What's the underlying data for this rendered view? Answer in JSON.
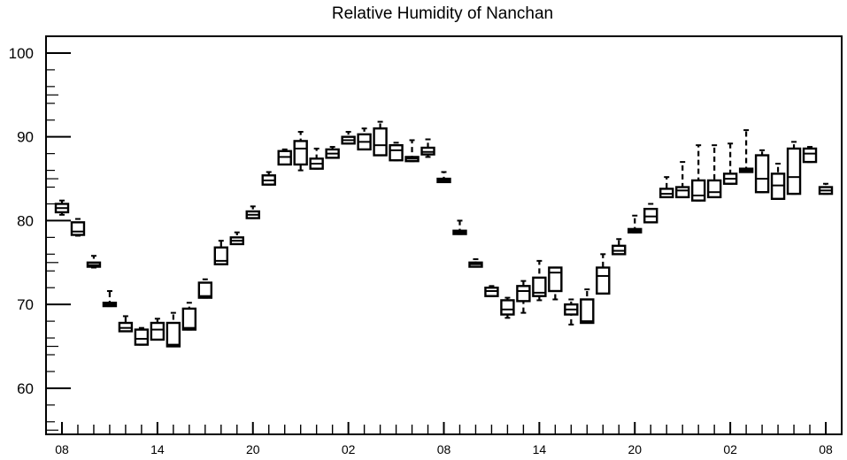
{
  "chart_data": {
    "type": "box",
    "title": "Relative Humidity of Nanchan",
    "xlabel": "",
    "ylabel": "",
    "ylim": [
      54.5,
      102
    ],
    "yticks": [
      60,
      70,
      80,
      90,
      100
    ],
    "xtick_labels": [
      "08",
      "14",
      "20",
      "02",
      "08",
      "14",
      "20",
      "02",
      "08"
    ],
    "xtick_positions": [
      0,
      6,
      12,
      18,
      24,
      30,
      36,
      42,
      48
    ],
    "grid": false,
    "boxes": [
      {
        "x": 0,
        "whisker_low": 80.7,
        "q1": 81.0,
        "median": 81.5,
        "q3": 82.0,
        "whisker_high": 82.4
      },
      {
        "x": 1,
        "whisker_low": 78.2,
        "q1": 78.3,
        "median": 78.7,
        "q3": 79.8,
        "whisker_high": 80.2
      },
      {
        "x": 2,
        "whisker_low": 74.4,
        "q1": 74.5,
        "median": 74.7,
        "q3": 75.0,
        "whisker_high": 75.8
      },
      {
        "x": 3,
        "whisker_low": 69.8,
        "q1": 69.8,
        "median": 70.0,
        "q3": 70.2,
        "whisker_high": 71.6
      },
      {
        "x": 4,
        "whisker_low": 66.8,
        "q1": 66.8,
        "median": 67.2,
        "q3": 67.8,
        "whisker_high": 68.6
      },
      {
        "x": 5,
        "whisker_low": 65.2,
        "q1": 65.2,
        "median": 65.9,
        "q3": 67.0,
        "whisker_high": 67.2
      },
      {
        "x": 6,
        "whisker_low": 65.8,
        "q1": 65.8,
        "median": 67.0,
        "q3": 67.8,
        "whisker_high": 68.3
      },
      {
        "x": 7,
        "whisker_low": 65.0,
        "q1": 65.0,
        "median": 65.2,
        "q3": 67.8,
        "whisker_high": 69.0
      },
      {
        "x": 8,
        "whisker_low": 67.0,
        "q1": 67.0,
        "median": 67.2,
        "q3": 69.5,
        "whisker_high": 70.2
      },
      {
        "x": 9,
        "whisker_low": 70.8,
        "q1": 70.8,
        "median": 71.0,
        "q3": 72.6,
        "whisker_high": 73.0
      },
      {
        "x": 10,
        "whisker_low": 74.8,
        "q1": 74.8,
        "median": 75.2,
        "q3": 76.8,
        "whisker_high": 77.6
      },
      {
        "x": 11,
        "whisker_low": 77.2,
        "q1": 77.2,
        "median": 77.6,
        "q3": 78.0,
        "whisker_high": 78.6
      },
      {
        "x": 12,
        "whisker_low": 80.3,
        "q1": 80.3,
        "median": 80.7,
        "q3": 81.1,
        "whisker_high": 81.7
      },
      {
        "x": 13,
        "whisker_low": 84.3,
        "q1": 84.3,
        "median": 84.8,
        "q3": 85.4,
        "whisker_high": 85.8
      },
      {
        "x": 14,
        "whisker_low": 86.7,
        "q1": 86.7,
        "median": 87.6,
        "q3": 88.3,
        "whisker_high": 88.5
      },
      {
        "x": 15,
        "whisker_low": 86.0,
        "q1": 86.7,
        "median": 88.6,
        "q3": 89.5,
        "whisker_high": 90.6
      },
      {
        "x": 16,
        "whisker_low": 86.2,
        "q1": 86.2,
        "median": 86.8,
        "q3": 87.4,
        "whisker_high": 88.6
      },
      {
        "x": 17,
        "whisker_low": 87.5,
        "q1": 87.5,
        "median": 88.0,
        "q3": 88.5,
        "whisker_high": 88.8
      },
      {
        "x": 18,
        "whisker_low": 89.2,
        "q1": 89.2,
        "median": 89.6,
        "q3": 90.0,
        "whisker_high": 90.6
      },
      {
        "x": 19,
        "whisker_low": 88.5,
        "q1": 88.5,
        "median": 89.4,
        "q3": 90.3,
        "whisker_high": 91.0
      },
      {
        "x": 20,
        "whisker_low": 87.8,
        "q1": 87.8,
        "median": 89.0,
        "q3": 91.0,
        "whisker_high": 91.8
      },
      {
        "x": 21,
        "whisker_low": 87.2,
        "q1": 87.2,
        "median": 88.4,
        "q3": 89.0,
        "whisker_high": 89.3
      },
      {
        "x": 22,
        "whisker_low": 87.1,
        "q1": 87.1,
        "median": 87.4,
        "q3": 87.6,
        "whisker_high": 89.6
      },
      {
        "x": 23,
        "whisker_low": 87.6,
        "q1": 87.9,
        "median": 88.2,
        "q3": 88.7,
        "whisker_high": 89.7
      },
      {
        "x": 24,
        "whisker_low": 84.6,
        "q1": 84.6,
        "median": 84.8,
        "q3": 85.0,
        "whisker_high": 85.8
      },
      {
        "x": 25,
        "whisker_low": 78.4,
        "q1": 78.4,
        "median": 78.6,
        "q3": 78.8,
        "whisker_high": 80.0
      },
      {
        "x": 26,
        "whisker_low": 74.5,
        "q1": 74.5,
        "median": 74.8,
        "q3": 75.0,
        "whisker_high": 75.4
      },
      {
        "x": 27,
        "whisker_low": 71.0,
        "q1": 71.0,
        "median": 71.6,
        "q3": 72.0,
        "whisker_high": 72.2
      },
      {
        "x": 28,
        "whisker_low": 68.4,
        "q1": 68.8,
        "median": 69.4,
        "q3": 70.5,
        "whisker_high": 70.8
      },
      {
        "x": 29,
        "whisker_low": 69.0,
        "q1": 70.4,
        "median": 71.6,
        "q3": 72.2,
        "whisker_high": 72.8
      },
      {
        "x": 30,
        "whisker_low": 70.5,
        "q1": 71.0,
        "median": 71.4,
        "q3": 73.2,
        "whisker_high": 75.2
      },
      {
        "x": 31,
        "whisker_low": 70.6,
        "q1": 71.6,
        "median": 73.8,
        "q3": 74.4,
        "whisker_high": 74.4
      },
      {
        "x": 32,
        "whisker_low": 67.6,
        "q1": 68.8,
        "median": 69.4,
        "q3": 70.0,
        "whisker_high": 70.6
      },
      {
        "x": 33,
        "whisker_low": 67.8,
        "q1": 67.8,
        "median": 68.0,
        "q3": 70.6,
        "whisker_high": 71.8
      },
      {
        "x": 34,
        "whisker_low": 71.3,
        "q1": 71.3,
        "median": 73.4,
        "q3": 74.4,
        "whisker_high": 76.0
      },
      {
        "x": 35,
        "whisker_low": 76.0,
        "q1": 76.0,
        "median": 76.4,
        "q3": 77.0,
        "whisker_high": 77.8
      },
      {
        "x": 36,
        "whisker_low": 78.6,
        "q1": 78.6,
        "median": 78.8,
        "q3": 79.0,
        "whisker_high": 80.6
      },
      {
        "x": 37,
        "whisker_low": 79.8,
        "q1": 79.8,
        "median": 80.5,
        "q3": 81.4,
        "whisker_high": 82.0
      },
      {
        "x": 38,
        "whisker_low": 82.8,
        "q1": 82.8,
        "median": 83.2,
        "q3": 83.8,
        "whisker_high": 85.2
      },
      {
        "x": 39,
        "whisker_low": 82.8,
        "q1": 82.8,
        "median": 83.6,
        "q3": 84.0,
        "whisker_high": 87.0
      },
      {
        "x": 40,
        "whisker_low": 82.4,
        "q1": 82.4,
        "median": 83.0,
        "q3": 84.8,
        "whisker_high": 89.0
      },
      {
        "x": 41,
        "whisker_low": 82.8,
        "q1": 82.8,
        "median": 83.4,
        "q3": 84.8,
        "whisker_high": 89.0
      },
      {
        "x": 42,
        "whisker_low": 84.4,
        "q1": 84.4,
        "median": 85.0,
        "q3": 85.6,
        "whisker_high": 89.2
      },
      {
        "x": 43,
        "whisker_low": 85.8,
        "q1": 85.8,
        "median": 86.0,
        "q3": 86.2,
        "whisker_high": 90.8
      },
      {
        "x": 44,
        "whisker_low": 83.4,
        "q1": 83.4,
        "median": 85.0,
        "q3": 87.8,
        "whisker_high": 88.4
      },
      {
        "x": 45,
        "whisker_low": 82.6,
        "q1": 82.6,
        "median": 84.2,
        "q3": 85.6,
        "whisker_high": 86.8
      },
      {
        "x": 46,
        "whisker_low": 83.2,
        "q1": 83.2,
        "median": 85.2,
        "q3": 88.6,
        "whisker_high": 89.4
      },
      {
        "x": 47,
        "whisker_low": 87.0,
        "q1": 87.0,
        "median": 88.0,
        "q3": 88.6,
        "whisker_high": 88.8
      },
      {
        "x": 48,
        "whisker_low": 83.2,
        "q1": 83.2,
        "median": 83.6,
        "q3": 84.0,
        "whisker_high": 84.4
      }
    ]
  }
}
